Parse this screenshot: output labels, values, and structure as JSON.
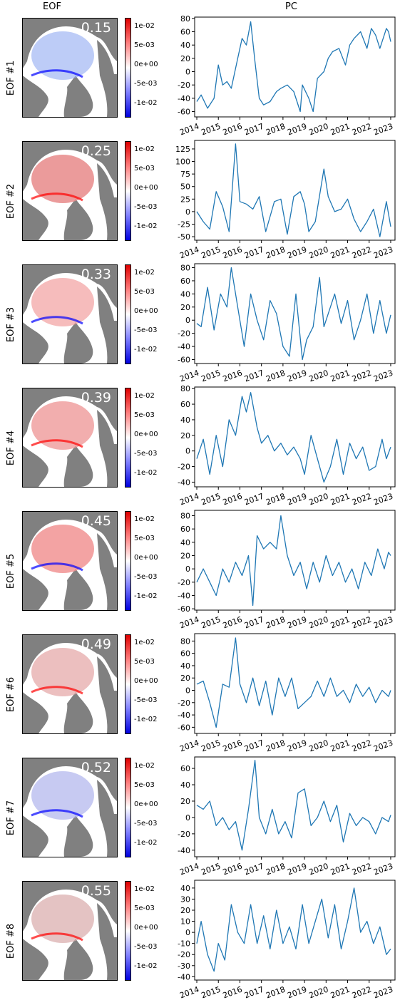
{
  "titles": {
    "eof": "EOF",
    "pc": "PC"
  },
  "colors": {
    "line": "#1f77b4",
    "land": "#808080",
    "red": "#ff0000",
    "blue": "#0000ff"
  },
  "colorbar_ticks": [
    "1e-02",
    "5e-03",
    "0e+00",
    "-5e-03",
    "-1e-02"
  ],
  "chart_data": [
    {
      "type": "line",
      "row_label": "EOF #1",
      "variance": "0.15",
      "xlim": [
        2013.9,
        2023.2
      ],
      "ylim": [
        -68,
        82
      ],
      "yticks": [
        -60,
        -40,
        -20,
        0,
        20,
        40,
        60,
        80
      ],
      "xticks": [
        2014,
        2015,
        2016,
        2017,
        2018,
        2019,
        2020,
        2021,
        2022,
        2023
      ],
      "series": [
        {
          "x": [
            2014.0,
            2014.2,
            2014.5,
            2014.8,
            2015.0,
            2015.2,
            2015.4,
            2015.6,
            2015.9,
            2016.1,
            2016.3,
            2016.5,
            2016.7,
            2016.9,
            2017.1,
            2017.4,
            2017.7,
            2017.9,
            2018.2,
            2018.5,
            2018.8,
            2018.9,
            2019.2,
            2019.4,
            2019.6,
            2019.9,
            2020.1,
            2020.3,
            2020.6,
            2020.9,
            2021.1,
            2021.3,
            2021.6,
            2021.9,
            2022.1,
            2022.3,
            2022.5,
            2022.8,
            2022.9,
            2023.0
          ],
          "y": [
            -45,
            -35,
            -55,
            -40,
            10,
            -20,
            -15,
            -25,
            20,
            50,
            40,
            75,
            15,
            -40,
            -50,
            -45,
            -30,
            -25,
            -20,
            -30,
            -60,
            -20,
            -40,
            -60,
            -10,
            0,
            20,
            30,
            35,
            10,
            40,
            50,
            60,
            35,
            65,
            55,
            35,
            65,
            60,
            45
          ]
        }
      ]
    },
    {
      "type": "line",
      "row_label": "EOF #2",
      "variance": "0.25",
      "xlim": [
        2013.9,
        2023.2
      ],
      "ylim": [
        -57,
        142
      ],
      "yticks": [
        -50,
        -25,
        0,
        25,
        50,
        75,
        100,
        125
      ],
      "xticks": [
        2014,
        2015,
        2016,
        2017,
        2018,
        2019,
        2020,
        2021,
        2022,
        2023
      ],
      "series": [
        {
          "x": [
            2014.0,
            2014.3,
            2014.6,
            2014.9,
            2015.2,
            2015.5,
            2015.8,
            2016.0,
            2016.3,
            2016.6,
            2016.9,
            2017.2,
            2017.6,
            2017.9,
            2018.2,
            2018.5,
            2018.8,
            2019.0,
            2019.2,
            2019.5,
            2019.9,
            2020.1,
            2020.4,
            2020.7,
            2021.0,
            2021.3,
            2021.6,
            2021.9,
            2022.2,
            2022.5,
            2022.8,
            2023.0
          ],
          "y": [
            0,
            -20,
            -35,
            40,
            10,
            -40,
            135,
            20,
            15,
            5,
            30,
            -40,
            20,
            25,
            -45,
            30,
            40,
            15,
            -40,
            -20,
            85,
            30,
            0,
            5,
            25,
            -15,
            -40,
            -20,
            5,
            -50,
            20,
            -30
          ]
        }
      ]
    },
    {
      "type": "line",
      "row_label": "EOF #3",
      "variance": "0.33",
      "xlim": [
        2013.9,
        2023.2
      ],
      "ylim": [
        -66,
        86
      ],
      "yticks": [
        -60,
        -40,
        -20,
        0,
        20,
        40,
        60,
        80
      ],
      "xticks": [
        2014,
        2015,
        2016,
        2017,
        2018,
        2019,
        2020,
        2021,
        2022,
        2023
      ],
      "series": [
        {
          "x": [
            2014.0,
            2014.2,
            2014.5,
            2014.8,
            2015.1,
            2015.4,
            2015.6,
            2015.9,
            2016.2,
            2016.5,
            2016.8,
            2017.1,
            2017.4,
            2017.7,
            2018.0,
            2018.3,
            2018.6,
            2018.9,
            2019.1,
            2019.4,
            2019.7,
            2019.9,
            2020.2,
            2020.4,
            2020.7,
            2021.0,
            2021.3,
            2021.6,
            2021.9,
            2022.2,
            2022.5,
            2022.8,
            2023.0
          ],
          "y": [
            -5,
            -10,
            50,
            -15,
            40,
            20,
            80,
            20,
            -40,
            40,
            0,
            -30,
            30,
            10,
            -40,
            -55,
            40,
            -60,
            -30,
            -10,
            65,
            -10,
            20,
            40,
            -5,
            30,
            -30,
            0,
            40,
            -20,
            30,
            -20,
            8
          ]
        }
      ]
    },
    {
      "type": "line",
      "row_label": "EOF #4",
      "variance": "0.39",
      "xlim": [
        2013.9,
        2023.2
      ],
      "ylim": [
        -46,
        82
      ],
      "yticks": [
        -40,
        -20,
        0,
        20,
        40,
        60,
        80
      ],
      "xticks": [
        2014,
        2015,
        2016,
        2017,
        2018,
        2019,
        2020,
        2021,
        2022,
        2023
      ],
      "series": [
        {
          "x": [
            2014.0,
            2014.3,
            2014.6,
            2014.9,
            2015.2,
            2015.5,
            2015.8,
            2016.1,
            2016.3,
            2016.5,
            2016.8,
            2017.0,
            2017.3,
            2017.6,
            2017.9,
            2018.2,
            2018.5,
            2018.8,
            2019.0,
            2019.3,
            2019.6,
            2019.9,
            2020.2,
            2020.5,
            2020.8,
            2021.1,
            2021.4,
            2021.7,
            2022.0,
            2022.3,
            2022.6,
            2022.8,
            2023.0
          ],
          "y": [
            -10,
            15,
            -30,
            20,
            -20,
            40,
            20,
            70,
            50,
            75,
            30,
            10,
            20,
            0,
            10,
            -5,
            5,
            -10,
            -30,
            20,
            -10,
            -40,
            -20,
            15,
            -30,
            10,
            -10,
            5,
            -25,
            -20,
            15,
            -10,
            5
          ]
        }
      ]
    },
    {
      "type": "line",
      "row_label": "EOF #5",
      "variance": "0.45",
      "xlim": [
        2013.9,
        2023.2
      ],
      "ylim": [
        -62,
        88
      ],
      "yticks": [
        -60,
        -40,
        -20,
        0,
        20,
        40,
        60,
        80
      ],
      "xticks": [
        2014,
        2015,
        2016,
        2017,
        2018,
        2019,
        2020,
        2021,
        2022,
        2023
      ],
      "series": [
        {
          "x": [
            2014.0,
            2014.3,
            2014.6,
            2014.9,
            2015.2,
            2015.5,
            2015.8,
            2016.1,
            2016.4,
            2016.6,
            2016.8,
            2017.1,
            2017.4,
            2017.7,
            2017.9,
            2018.2,
            2018.5,
            2018.8,
            2019.1,
            2019.4,
            2019.7,
            2020.0,
            2020.3,
            2020.6,
            2020.9,
            2021.2,
            2021.5,
            2021.8,
            2022.1,
            2022.4,
            2022.7,
            2022.9,
            2023.0
          ],
          "y": [
            -20,
            0,
            -20,
            -40,
            0,
            -20,
            10,
            -10,
            20,
            -55,
            50,
            30,
            40,
            30,
            80,
            20,
            -10,
            10,
            -30,
            10,
            -20,
            20,
            -10,
            10,
            -20,
            0,
            -30,
            10,
            -10,
            30,
            0,
            25,
            20
          ]
        }
      ]
    },
    {
      "type": "line",
      "row_label": "EOF #6",
      "variance": "0.49",
      "xlim": [
        2013.9,
        2023.2
      ],
      "ylim": [
        -70,
        92
      ],
      "yticks": [
        -60,
        -40,
        -20,
        0,
        20,
        40,
        60,
        80
      ],
      "xticks": [
        2014,
        2015,
        2016,
        2017,
        2018,
        2019,
        2020,
        2021,
        2022,
        2023
      ],
      "series": [
        {
          "x": [
            2014.0,
            2014.3,
            2014.6,
            2014.9,
            2015.2,
            2015.5,
            2015.8,
            2016.0,
            2016.3,
            2016.6,
            2016.9,
            2017.2,
            2017.5,
            2017.8,
            2018.1,
            2018.4,
            2018.7,
            2019.0,
            2019.3,
            2019.6,
            2019.9,
            2020.2,
            2020.5,
            2020.8,
            2021.1,
            2021.4,
            2021.7,
            2022.0,
            2022.3,
            2022.6,
            2022.9,
            2023.0
          ],
          "y": [
            10,
            15,
            -20,
            -60,
            10,
            5,
            85,
            10,
            -20,
            20,
            -25,
            15,
            -40,
            20,
            -10,
            20,
            -30,
            -20,
            -10,
            15,
            -10,
            20,
            -10,
            0,
            -20,
            10,
            -10,
            5,
            -20,
            0,
            -10,
            0
          ]
        }
      ]
    },
    {
      "type": "line",
      "row_label": "EOF #7",
      "variance": "0.52",
      "xlim": [
        2013.9,
        2023.2
      ],
      "ylim": [
        -48,
        74
      ],
      "yticks": [
        -40,
        -20,
        0,
        20,
        40,
        60
      ],
      "xticks": [
        2014,
        2015,
        2016,
        2017,
        2018,
        2019,
        2020,
        2021,
        2022,
        2023
      ],
      "series": [
        {
          "x": [
            2014.0,
            2014.3,
            2014.6,
            2014.9,
            2015.2,
            2015.5,
            2015.8,
            2016.1,
            2016.4,
            2016.7,
            2016.9,
            2017.2,
            2017.5,
            2017.8,
            2018.1,
            2018.4,
            2018.7,
            2019.0,
            2019.3,
            2019.6,
            2019.9,
            2020.2,
            2020.5,
            2020.8,
            2021.1,
            2021.4,
            2021.7,
            2022.0,
            2022.3,
            2022.6,
            2022.9,
            2023.0
          ],
          "y": [
            15,
            10,
            20,
            -10,
            0,
            -15,
            -5,
            -40,
            10,
            70,
            0,
            -20,
            10,
            -20,
            -5,
            -25,
            30,
            35,
            -10,
            0,
            20,
            -5,
            15,
            -30,
            5,
            -10,
            0,
            -5,
            -20,
            0,
            -5,
            3
          ]
        }
      ]
    },
    {
      "type": "line",
      "row_label": "EOF #8",
      "variance": "0.55",
      "xlim": [
        2013.9,
        2023.2
      ],
      "ylim": [
        -43,
        47
      ],
      "yticks": [
        -40,
        -30,
        -20,
        -10,
        0,
        10,
        20,
        30,
        40
      ],
      "xticks": [
        2014,
        2015,
        2016,
        2017,
        2018,
        2019,
        2020,
        2021,
        2022,
        2023
      ],
      "series": [
        {
          "x": [
            2014.0,
            2014.2,
            2014.5,
            2014.8,
            2015.0,
            2015.3,
            2015.6,
            2015.9,
            2016.2,
            2016.5,
            2016.8,
            2017.1,
            2017.4,
            2017.7,
            2018.0,
            2018.3,
            2018.6,
            2018.9,
            2019.2,
            2019.5,
            2019.8,
            2020.1,
            2020.4,
            2020.7,
            2021.0,
            2021.3,
            2021.6,
            2021.9,
            2022.2,
            2022.5,
            2022.8,
            2023.0
          ],
          "y": [
            -10,
            10,
            -20,
            -35,
            -10,
            -25,
            25,
            0,
            -10,
            25,
            -10,
            15,
            -15,
            20,
            -10,
            5,
            -15,
            25,
            -10,
            10,
            30,
            -5,
            25,
            -15,
            10,
            40,
            0,
            10,
            -10,
            5,
            -20,
            -15
          ]
        }
      ]
    }
  ]
}
